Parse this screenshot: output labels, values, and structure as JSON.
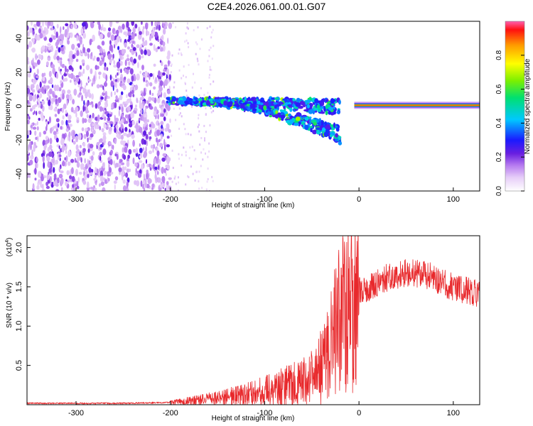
{
  "title": "C2E4.2026.061.00.01.G07",
  "chart_data": [
    {
      "type": "heatmap",
      "name": "spectrogram",
      "xlabel": "Height of straight line (km)",
      "ylabel": "Frequency (Hz)",
      "xlim": [
        -352,
        128
      ],
      "ylim": [
        -50,
        50
      ],
      "xticks": [
        -300,
        -200,
        -100,
        0,
        100
      ],
      "xtick_labels": [
        "-300",
        "-200",
        "-100",
        "0",
        "100"
      ],
      "yticks": [
        -40,
        -20,
        0,
        20,
        40
      ],
      "ytick_labels": [
        "-40",
        "-20",
        "0",
        "20",
        "40"
      ],
      "colorbar": {
        "label": "Normalized spectral amplitude",
        "range": [
          0,
          1
        ],
        "ticks": [
          0.0,
          0.2,
          0.4,
          0.6,
          0.8
        ],
        "tick_labels": [
          "0.0",
          "0.2",
          "0.4",
          "0.6",
          "0.8"
        ]
      },
      "features": [
        {
          "description": "broadband noise",
          "x_range": [
            -352,
            -200
          ],
          "freq_range": [
            -50,
            50
          ],
          "amplitude": 0.12
        },
        {
          "description": "diverging traces",
          "x_range": [
            -205,
            -20
          ],
          "freq_start": 3,
          "freq_end": [
            2,
            -20
          ],
          "amplitude": 0.3
        },
        {
          "description": "steady carrier",
          "x_range": [
            -5,
            128
          ],
          "freq": 0.5,
          "amplitude": 0.9
        }
      ]
    },
    {
      "type": "line",
      "name": "snr",
      "xlabel": "Height of straight line (km)",
      "ylabel": "SNR (10 * v/v)",
      "multiplier_label": "(x10",
      "multiplier_exp": "4",
      "multiplier_close": ")",
      "xlim": [
        -352,
        128
      ],
      "ylim": [
        0,
        2.15
      ],
      "xticks": [
        -300,
        -200,
        -100,
        0,
        100
      ],
      "xtick_labels": [
        "-300",
        "-200",
        "-100",
        "0",
        "100"
      ],
      "yticks": [
        0.5,
        1.0,
        1.5,
        2.0
      ],
      "ytick_labels": [
        "0.5",
        "1.0",
        "1.5",
        "2.0"
      ],
      "color": "#e8282b",
      "profile": [
        [
          -352,
          0.02
        ],
        [
          -250,
          0.02
        ],
        [
          -200,
          0.03
        ],
        [
          -180,
          0.06
        ],
        [
          -150,
          0.1
        ],
        [
          -120,
          0.16
        ],
        [
          -100,
          0.22
        ],
        [
          -80,
          0.28
        ],
        [
          -60,
          0.35
        ],
        [
          -45,
          0.45
        ],
        [
          -35,
          0.7
        ],
        [
          -28,
          1.05
        ],
        [
          -20,
          1.3
        ],
        [
          -12,
          1.55
        ],
        [
          -5,
          1.5
        ],
        [
          10,
          1.52
        ],
        [
          30,
          1.65
        ],
        [
          50,
          1.72
        ],
        [
          70,
          1.7
        ],
        [
          90,
          1.58
        ],
        [
          110,
          1.5
        ],
        [
          128,
          1.45
        ]
      ]
    }
  ]
}
